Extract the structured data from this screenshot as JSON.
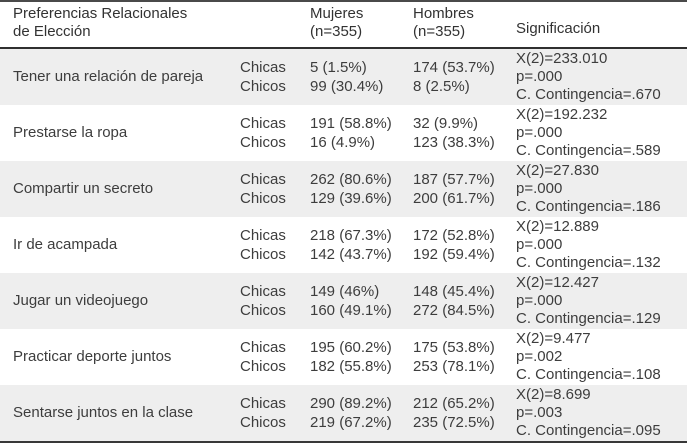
{
  "table": {
    "header": {
      "col1_line1": "Preferencias Relacionales",
      "col1_line2": "de Elección",
      "mujeres_line1": "Mujeres",
      "mujeres_line2": "(n=355)",
      "hombres_line1": "Hombres",
      "hombres_line2": "(n=355)",
      "significacion": "Significación"
    },
    "rows": [
      {
        "preference": "Tener una relación de pareja",
        "groups": [
          "Chicas",
          "Chicos"
        ],
        "mujeres": [
          "5 (1.5%)",
          "99 (30.4%)"
        ],
        "hombres": [
          "174 (53.7%)",
          "8 (2.5%)"
        ],
        "significacion": [
          "X(2)=233.010",
          "p=.000",
          "C. Contingencia=.670"
        ]
      },
      {
        "preference": "Prestarse la ropa",
        "groups": [
          "Chicas",
          "Chicos"
        ],
        "mujeres": [
          "191 (58.8%)",
          "16 (4.9%)"
        ],
        "hombres": [
          "32 (9.9%)",
          "123 (38.3%)"
        ],
        "significacion": [
          "X(2)=192.232",
          "p=.000",
          "C. Contingencia=.589"
        ]
      },
      {
        "preference": "Compartir un secreto",
        "groups": [
          "Chicas",
          "Chicos"
        ],
        "mujeres": [
          "262 (80.6%)",
          "129 (39.6%)"
        ],
        "hombres": [
          "187 (57.7%)",
          "200 (61.7%)"
        ],
        "significacion": [
          "X(2)=27.830",
          "p=.000",
          "C. Contingencia=.186"
        ]
      },
      {
        "preference": "Ir de acampada",
        "groups": [
          "Chicas",
          "Chicos"
        ],
        "mujeres": [
          "218 (67.3%)",
          "142 (43.7%)"
        ],
        "hombres": [
          "172 (52.8%)",
          "192 (59.4%)"
        ],
        "significacion": [
          "X(2)=12.889",
          "p=.000",
          "C. Contingencia=.132"
        ]
      },
      {
        "preference": "Jugar un videojuego",
        "groups": [
          "Chicas",
          "Chicos"
        ],
        "mujeres": [
          "149 (46%)",
          "160 (49.1%)"
        ],
        "hombres": [
          "148 (45.4%)",
          "272 (84.5%)"
        ],
        "significacion": [
          "X(2)=12.427",
          "p=.000",
          "C. Contingencia=.129"
        ]
      },
      {
        "preference": "Practicar deporte juntos",
        "groups": [
          "Chicas",
          "Chicos"
        ],
        "mujeres": [
          "195 (60.2%)",
          "182 (55.8%)"
        ],
        "hombres": [
          "175 (53.8%)",
          "253 (78.1%)"
        ],
        "significacion": [
          "X(2)=9.477",
          "p=.002",
          "C. Contingencia=.108"
        ]
      },
      {
        "preference": "Sentarse juntos en la clase",
        "groups": [
          "Chicas",
          "Chicos"
        ],
        "mujeres": [
          "290 (89.2%)",
          "219 (67.2%)"
        ],
        "hombres": [
          "212 (65.2%)",
          "235 (72.5%)"
        ],
        "significacion": [
          "X(2)=8.699",
          "p=.003",
          "C. Contingencia=.095"
        ]
      }
    ]
  },
  "colors": {
    "row_alt_bg": "#eeeeee",
    "text": "#3d3d3d",
    "rule": "#2f2f2f"
  }
}
